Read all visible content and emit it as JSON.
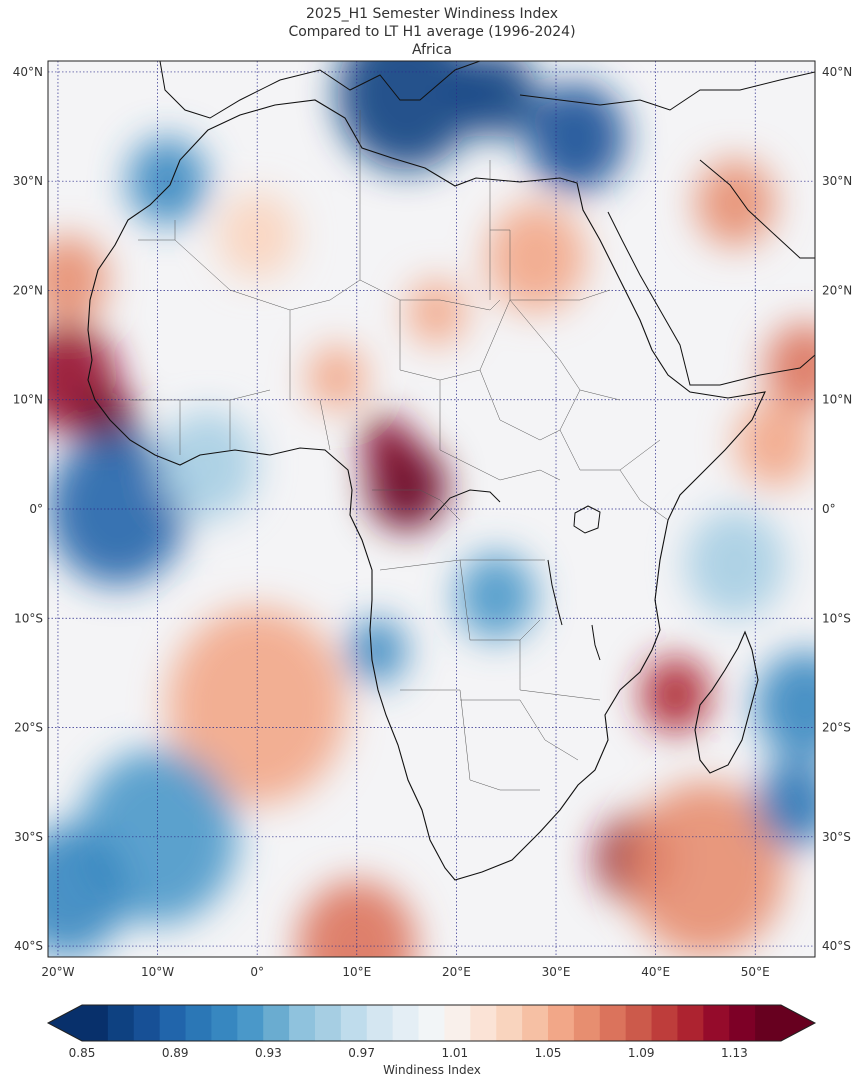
{
  "title": {
    "line1": "2025_H1 Semester Windiness Index",
    "line2": "Compared to LT H1 average (1996-2024)",
    "line3": "Africa"
  },
  "map": {
    "lon_range": [
      -21,
      56
    ],
    "lat_range": [
      -41,
      41
    ],
    "lat_ticks": [
      {
        "value": 40,
        "label": "40°N"
      },
      {
        "value": 30,
        "label": "30°N"
      },
      {
        "value": 20,
        "label": "20°N"
      },
      {
        "value": 10,
        "label": "10°N"
      },
      {
        "value": 0,
        "label": "0°"
      },
      {
        "value": -10,
        "label": "10°S"
      },
      {
        "value": -20,
        "label": "20°S"
      },
      {
        "value": -30,
        "label": "30°S"
      },
      {
        "value": -40,
        "label": "40°S"
      }
    ],
    "lon_ticks": [
      {
        "value": -20,
        "label": "20°W"
      },
      {
        "value": -10,
        "label": "10°W"
      },
      {
        "value": 0,
        "label": "0°"
      },
      {
        "value": 10,
        "label": "10°E"
      },
      {
        "value": 20,
        "label": "20°E"
      },
      {
        "value": 30,
        "label": "30°E"
      },
      {
        "value": 40,
        "label": "40°E"
      },
      {
        "value": 50,
        "label": "50°E"
      }
    ]
  },
  "colorbar": {
    "label": "Windiness Index",
    "min": 0.85,
    "max": 1.15,
    "ticks": [
      {
        "value": 0.85,
        "label": "0.85"
      },
      {
        "value": 0.89,
        "label": "0.89"
      },
      {
        "value": 0.93,
        "label": "0.93"
      },
      {
        "value": 0.97,
        "label": "0.97"
      },
      {
        "value": 1.01,
        "label": "1.01"
      },
      {
        "value": 1.05,
        "label": "1.05"
      },
      {
        "value": 1.09,
        "label": "1.09"
      },
      {
        "value": 1.13,
        "label": "1.13"
      }
    ],
    "colors": [
      "#08306b",
      "#0e4181",
      "#175096",
      "#2165ab",
      "#2b77b6",
      "#3787c0",
      "#4a98c9",
      "#6aacd0",
      "#8fc2dd",
      "#a6cee3",
      "#bfdcec",
      "#d4e6f1",
      "#e4eef5",
      "#f2f5f7",
      "#f9f0eb",
      "#fbe3d6",
      "#f9d4be",
      "#f6c0a4",
      "#f2a788",
      "#e78e70",
      "#db735c",
      "#cc5a4b",
      "#be3d3b",
      "#ad2330",
      "#950b2b",
      "#7d0026",
      "#67001f"
    ]
  },
  "fields": [
    {
      "name": "mediterranean-low",
      "lon": 15,
      "lat": 38,
      "r": 7,
      "value": 0.87
    },
    {
      "name": "east-med-low",
      "lon": 32,
      "lat": 34,
      "r": 5,
      "value": 0.88
    },
    {
      "name": "aegean-low",
      "lon": 24,
      "lat": 38,
      "r": 4,
      "value": 0.87
    },
    {
      "name": "atlas-low",
      "lon": -9,
      "lat": 30,
      "r": 4,
      "value": 0.91
    },
    {
      "name": "senegal-high",
      "lon": -19,
      "lat": 12,
      "r": 5,
      "value": 1.12
    },
    {
      "name": "guinea-high",
      "lon": -15,
      "lat": 8,
      "r": 3,
      "value": 1.14
    },
    {
      "name": "mauritania-high",
      "lon": -19,
      "lat": 21,
      "r": 4,
      "value": 1.07
    },
    {
      "name": "equatorial-low",
      "lon": -14,
      "lat": 0,
      "r": 7,
      "value": 0.89
    },
    {
      "name": "gabon-high",
      "lon": 15,
      "lat": 2,
      "r": 4,
      "value": 1.15
    },
    {
      "name": "cameroon-high",
      "lon": 13,
      "lat": 6,
      "r": 2.5,
      "value": 1.13
    },
    {
      "name": "sudan-high",
      "lon": 28,
      "lat": 23,
      "r": 5,
      "value": 1.05
    },
    {
      "name": "niger-high",
      "lon": 18,
      "lat": 18,
      "r": 3,
      "value": 1.05
    },
    {
      "name": "arabia-high",
      "lon": 48,
      "lat": 28,
      "r": 4,
      "value": 1.07
    },
    {
      "name": "yemen-high",
      "lon": 55,
      "lat": 13,
      "r": 4,
      "value": 1.08
    },
    {
      "name": "somalia-high",
      "lon": 52,
      "lat": 6,
      "r": 4,
      "value": 1.05
    },
    {
      "name": "mozambique-high",
      "lon": 42,
      "lat": -17,
      "r": 3.5,
      "value": 1.11
    },
    {
      "name": "congo-low",
      "lon": 24,
      "lat": -8,
      "r": 4,
      "value": 0.92
    },
    {
      "name": "angola-coast-low",
      "lon": 12,
      "lat": -13,
      "r": 3,
      "value": 0.91
    },
    {
      "name": "atlantic-high",
      "lon": 0,
      "lat": -18,
      "r": 9,
      "value": 1.05
    },
    {
      "name": "south-atlantic-low",
      "lon": -10,
      "lat": -30,
      "r": 8,
      "value": 0.92
    },
    {
      "name": "west-atlantic-low",
      "lon": -19,
      "lat": -35,
      "r": 6,
      "value": 0.91
    },
    {
      "name": "cape-high",
      "lon": 38,
      "lat": -32,
      "r": 4,
      "value": 1.12
    },
    {
      "name": "southern-ocean-high",
      "lon": 45,
      "lat": -33,
      "r": 8,
      "value": 1.07
    },
    {
      "name": "south-atlantic-high",
      "lon": 10,
      "lat": -40,
      "r": 6,
      "value": 1.08
    },
    {
      "name": "madagascar-east-low",
      "lon": 55,
      "lat": -18,
      "r": 5,
      "value": 0.91
    },
    {
      "name": "indian-ocean-low",
      "lon": 54,
      "lat": -27,
      "r": 4,
      "value": 0.9
    },
    {
      "name": "south-atlantic-light-low",
      "lon": -5,
      "lat": 4,
      "r": 5,
      "value": 0.95
    },
    {
      "name": "sahel-mixed",
      "lon": 8,
      "lat": 12,
      "r": 3,
      "value": 1.05
    },
    {
      "name": "sahara-high",
      "lon": 0,
      "lat": 25,
      "r": 4,
      "value": 1.03
    },
    {
      "name": "indian-north-low",
      "lon": 48,
      "lat": -5,
      "r": 5,
      "value": 0.95
    }
  ]
}
